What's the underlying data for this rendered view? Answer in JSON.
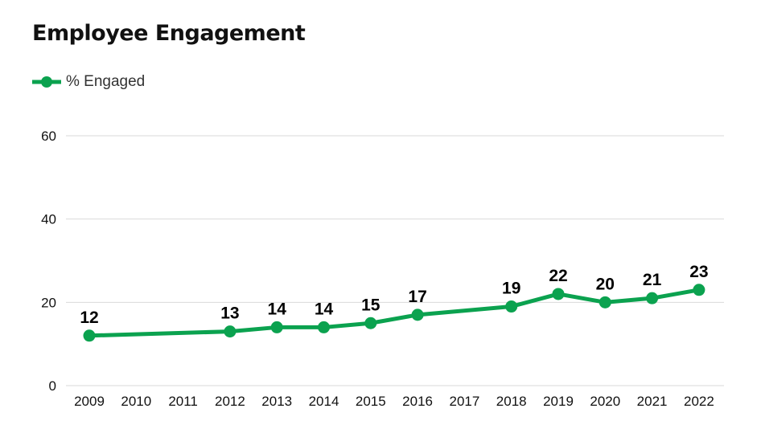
{
  "title": "Employee Engagement",
  "legend": {
    "label": "% Engaged"
  },
  "colors": {
    "series": "#0ba24f",
    "grid": "#d9d9d9"
  },
  "chart_data": {
    "type": "line",
    "title": "Employee Engagement",
    "xlabel": "",
    "ylabel": "",
    "ylim": [
      0,
      60
    ],
    "yticks": [
      0,
      20,
      40,
      60
    ],
    "categories": [
      "2009",
      "2010",
      "2011",
      "2012",
      "2013",
      "2014",
      "2015",
      "2016",
      "2017",
      "2018",
      "2019",
      "2020",
      "2021",
      "2022"
    ],
    "series": [
      {
        "name": "% Engaged",
        "points": [
          {
            "x": "2009",
            "y": 12
          },
          {
            "x": "2012",
            "y": 13
          },
          {
            "x": "2013",
            "y": 14
          },
          {
            "x": "2014",
            "y": 14
          },
          {
            "x": "2015",
            "y": 15
          },
          {
            "x": "2016",
            "y": 17
          },
          {
            "x": "2018",
            "y": 19
          },
          {
            "x": "2019",
            "y": 22
          },
          {
            "x": "2020",
            "y": 20
          },
          {
            "x": "2021",
            "y": 21
          },
          {
            "x": "2022",
            "y": 23
          }
        ]
      }
    ],
    "grid": true,
    "legend_position": "top-left",
    "data_labels": true
  }
}
